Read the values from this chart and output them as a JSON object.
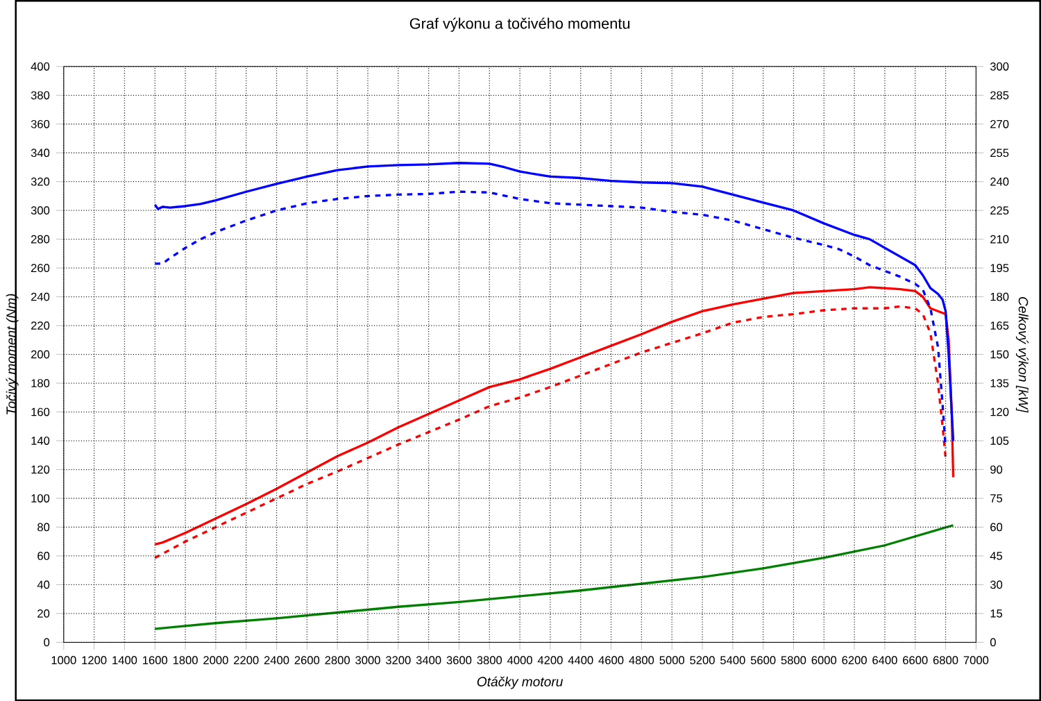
{
  "chart_data": {
    "type": "line",
    "title": "Graf výkonu a točivého momentu",
    "xlabel": "Otáčky motoru",
    "ylabel": "Točivý moment (Nm)",
    "y2label": "Celkový výkon [kW]",
    "xlim": [
      1000,
      7000
    ],
    "xticks": [
      1000,
      1200,
      1400,
      1600,
      1800,
      2000,
      2200,
      2400,
      2600,
      2800,
      3000,
      3200,
      3400,
      3600,
      3800,
      4000,
      4200,
      4400,
      4600,
      4800,
      5000,
      5200,
      5400,
      5600,
      5800,
      6000,
      6200,
      6400,
      6600,
      6800,
      7000
    ],
    "ylim": [
      0,
      400
    ],
    "yticks": [
      0,
      20,
      40,
      60,
      80,
      100,
      120,
      140,
      160,
      180,
      200,
      220,
      240,
      260,
      280,
      300,
      320,
      340,
      360,
      380,
      400
    ],
    "y2lim": [
      0,
      300
    ],
    "y2ticks": [
      0,
      15,
      30,
      45,
      60,
      75,
      90,
      105,
      120,
      135,
      150,
      165,
      180,
      195,
      210,
      225,
      240,
      255,
      270,
      285,
      300
    ],
    "grid": true,
    "series": [
      {
        "color": "#0000ff",
        "line_style": "solid",
        "x": [
          1600,
          1620,
          1650,
          1700,
          1800,
          1900,
          2000,
          2200,
          2400,
          2600,
          2800,
          3000,
          3200,
          3400,
          3600,
          3800,
          3900,
          4000,
          4200,
          4400,
          4600,
          4800,
          5000,
          5200,
          5400,
          5600,
          5800,
          6000,
          6200,
          6300,
          6400,
          6500,
          6600,
          6650,
          6700,
          6750,
          6780,
          6800,
          6820,
          6840,
          6850
        ],
        "values": [
          304,
          301,
          302.5,
          302,
          303,
          304.5,
          307,
          313,
          318.5,
          323.5,
          328,
          330.5,
          331.5,
          332,
          333,
          332.5,
          330,
          327,
          323.5,
          322.5,
          320.5,
          319.5,
          319,
          316.5,
          311,
          305.5,
          300,
          291,
          283,
          280,
          274,
          268,
          262,
          255,
          246,
          242,
          238,
          230,
          200,
          160,
          140
        ]
      },
      {
        "color": "#0000ff",
        "line_style": "dashed",
        "x": [
          1600,
          1650,
          1700,
          1800,
          1900,
          2000,
          2200,
          2400,
          2600,
          2800,
          3000,
          3200,
          3400,
          3600,
          3800,
          4000,
          4200,
          4400,
          4600,
          4800,
          5000,
          5200,
          5400,
          5600,
          5800,
          6000,
          6100,
          6200,
          6300,
          6400,
          6500,
          6600,
          6650,
          6700,
          6750,
          6780,
          6800
        ],
        "values": [
          263,
          263,
          267,
          274,
          280,
          285,
          293,
          300,
          305,
          308,
          310,
          311,
          311.5,
          313,
          312.5,
          308,
          305,
          304,
          303,
          302,
          299,
          297,
          293,
          287,
          281,
          276,
          273,
          268,
          262,
          258,
          254,
          249,
          245,
          232,
          205,
          165,
          135
        ]
      },
      {
        "color": "#ff0000",
        "line_style": "solid",
        "axis": "y2",
        "x": [
          1600,
          1650,
          1800,
          2000,
          2200,
          2400,
          2600,
          2800,
          3000,
          3200,
          3400,
          3600,
          3800,
          4000,
          4200,
          4400,
          4600,
          4800,
          5000,
          5200,
          5400,
          5600,
          5800,
          6000,
          6200,
          6300,
          6400,
          6500,
          6600,
          6650,
          6700,
          6750,
          6800,
          6820,
          6840,
          6850
        ],
        "values": [
          51,
          52,
          57,
          64.5,
          72,
          80,
          88.5,
          97,
          104,
          112,
          119,
          126,
          133,
          137,
          142.5,
          148.5,
          154.5,
          160.5,
          167,
          172.5,
          176,
          179,
          182,
          183,
          184,
          185,
          184.5,
          184,
          183,
          180,
          174,
          172.5,
          171,
          157.5,
          120,
          86
        ]
      },
      {
        "color": "#ff0000",
        "line_style": "dashed",
        "axis": "y2",
        "x": [
          1600,
          1800,
          2000,
          2200,
          2400,
          2600,
          2800,
          3000,
          3200,
          3400,
          3600,
          3800,
          4000,
          4200,
          4400,
          4600,
          4800,
          5000,
          5200,
          5400,
          5600,
          5800,
          6000,
          6200,
          6400,
          6500,
          6600,
          6650,
          6700,
          6750,
          6780,
          6800
        ],
        "values": [
          44,
          52.5,
          60,
          67.5,
          75,
          82.5,
          89,
          96,
          103,
          109.5,
          116,
          123,
          127.5,
          133,
          139,
          145,
          151,
          156,
          161,
          166.5,
          169.5,
          171,
          173,
          174,
          174,
          175,
          174,
          171,
          161,
          135,
          112.5,
          96
        ]
      },
      {
        "color": "#008000",
        "line_style": "solid",
        "axis": "y2",
        "x": [
          1600,
          2000,
          2400,
          2800,
          3200,
          3600,
          4000,
          4400,
          4800,
          5200,
          5600,
          6000,
          6400,
          6850
        ],
        "values": [
          7,
          10,
          12.5,
          15.5,
          18.5,
          21,
          24,
          27,
          30.5,
          34,
          38.5,
          44,
          50.5,
          61
        ]
      }
    ]
  }
}
